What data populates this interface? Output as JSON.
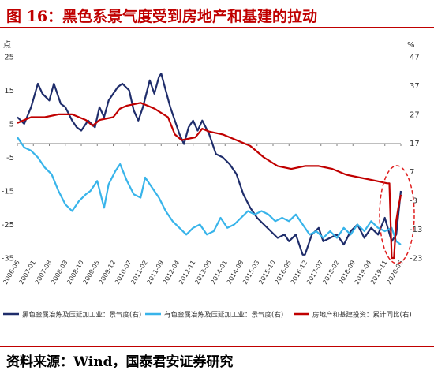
{
  "header": {
    "title": "图 16：黑色系景气度受到房地产和基建的拉动"
  },
  "footer": {
    "source": "资料来源：Wind，国泰君安证券研究"
  },
  "colors": {
    "title": "#c00000",
    "rule": "#c00000",
    "ferrous": "#1f2d6b",
    "nonferrous": "#38b4ea",
    "realestate": "#c00000",
    "highlight": "#e02020"
  },
  "chart_data": {
    "type": "line",
    "left_axis": {
      "unit": "点",
      "ticks": [
        25,
        15,
        5,
        -5,
        -15,
        -25,
        -35
      ],
      "range": [
        -35,
        25
      ]
    },
    "right_axis": {
      "unit": "%",
      "ticks": [
        47,
        37,
        27,
        17,
        7,
        -3,
        -13,
        -23
      ],
      "range": [
        -23,
        47
      ]
    },
    "x_ticks": [
      "2006-06",
      "2007-01",
      "2007-08",
      "2008-03",
      "2008-10",
      "2009-05",
      "2009-12",
      "2010-07",
      "2011-02",
      "2011-09",
      "2012-04",
      "2012-11",
      "2013-06",
      "2014-01",
      "2014-08",
      "2015-03",
      "2015-10",
      "2016-05",
      "2016-12",
      "2017-07",
      "2018-02",
      "2018-09",
      "2019-04",
      "2019-11",
      "2020-06"
    ],
    "series": [
      {
        "name": "黑色金属冶炼及压延加工业：景气度(右)",
        "axis": "left",
        "values": [
          [
            "2006-06",
            7
          ],
          [
            "2006-09",
            5
          ],
          [
            "2006-12",
            10
          ],
          [
            "2007-03",
            17
          ],
          [
            "2007-05",
            14
          ],
          [
            "2007-08",
            12
          ],
          [
            "2007-10",
            17
          ],
          [
            "2008-01",
            11
          ],
          [
            "2008-03",
            10
          ],
          [
            "2008-06",
            6
          ],
          [
            "2008-08",
            4
          ],
          [
            "2008-10",
            3
          ],
          [
            "2009-01",
            6
          ],
          [
            "2009-04",
            4
          ],
          [
            "2009-06",
            10
          ],
          [
            "2009-08",
            7
          ],
          [
            "2009-10",
            12
          ],
          [
            "2009-12",
            14
          ],
          [
            "2010-02",
            16
          ],
          [
            "2010-04",
            17
          ],
          [
            "2010-07",
            15
          ],
          [
            "2010-09",
            9
          ],
          [
            "2010-11",
            6
          ],
          [
            "2011-01",
            10
          ],
          [
            "2011-04",
            18
          ],
          [
            "2011-06",
            14
          ],
          [
            "2011-08",
            19
          ],
          [
            "2011-09",
            20
          ],
          [
            "2011-11",
            15
          ],
          [
            "2012-01",
            10
          ],
          [
            "2012-03",
            6
          ],
          [
            "2012-05",
            2
          ],
          [
            "2012-07",
            -1
          ],
          [
            "2012-09",
            4
          ],
          [
            "2012-11",
            6
          ],
          [
            "2013-01",
            3
          ],
          [
            "2013-03",
            6
          ],
          [
            "2013-06",
            2
          ],
          [
            "2013-09",
            -4
          ],
          [
            "2013-12",
            -5
          ],
          [
            "2014-03",
            -7
          ],
          [
            "2014-06",
            -10
          ],
          [
            "2014-09",
            -16
          ],
          [
            "2014-12",
            -20
          ],
          [
            "2015-03",
            -23
          ],
          [
            "2015-06",
            -25
          ],
          [
            "2015-09",
            -27
          ],
          [
            "2015-12",
            -29
          ],
          [
            "2016-03",
            -28
          ],
          [
            "2016-05",
            -30
          ],
          [
            "2016-08",
            -28
          ],
          [
            "2016-11",
            -34
          ],
          [
            "2016-12",
            -34
          ],
          [
            "2017-03",
            -28
          ],
          [
            "2017-06",
            -26
          ],
          [
            "2017-08",
            -30
          ],
          [
            "2017-11",
            -29
          ],
          [
            "2018-02",
            -28
          ],
          [
            "2018-05",
            -31
          ],
          [
            "2018-08",
            -27
          ],
          [
            "2018-11",
            -25
          ],
          [
            "2019-02",
            -29
          ],
          [
            "2019-05",
            -26
          ],
          [
            "2019-08",
            -28
          ],
          [
            "2019-11",
            -23
          ],
          [
            "2020-02",
            -30
          ],
          [
            "2020-04",
            -28
          ],
          [
            "2020-06",
            -15
          ]
        ]
      },
      {
        "name": "有色金属冶炼及压延加工业：景气度(右)",
        "axis": "left",
        "values": [
          [
            "2006-06",
            1
          ],
          [
            "2006-09",
            -2
          ],
          [
            "2006-12",
            -3
          ],
          [
            "2007-03",
            -5
          ],
          [
            "2007-06",
            -8
          ],
          [
            "2007-09",
            -10
          ],
          [
            "2007-12",
            -15
          ],
          [
            "2008-03",
            -19
          ],
          [
            "2008-06",
            -21
          ],
          [
            "2008-09",
            -18
          ],
          [
            "2008-12",
            -16
          ],
          [
            "2009-02",
            -15
          ],
          [
            "2009-05",
            -12
          ],
          [
            "2009-08",
            -20
          ],
          [
            "2009-10",
            -13
          ],
          [
            "2010-01",
            -9
          ],
          [
            "2010-03",
            -7
          ],
          [
            "2010-06",
            -12
          ],
          [
            "2010-09",
            -16
          ],
          [
            "2010-12",
            -17
          ],
          [
            "2011-02",
            -11
          ],
          [
            "2011-05",
            -14
          ],
          [
            "2011-08",
            -17
          ],
          [
            "2011-11",
            -21
          ],
          [
            "2012-02",
            -24
          ],
          [
            "2012-05",
            -26
          ],
          [
            "2012-08",
            -28
          ],
          [
            "2012-11",
            -26
          ],
          [
            "2013-02",
            -25
          ],
          [
            "2013-05",
            -28
          ],
          [
            "2013-08",
            -27
          ],
          [
            "2013-11",
            -23
          ],
          [
            "2014-02",
            -26
          ],
          [
            "2014-05",
            -25
          ],
          [
            "2014-08",
            -23
          ],
          [
            "2014-11",
            -21
          ],
          [
            "2015-02",
            -22
          ],
          [
            "2015-05",
            -21
          ],
          [
            "2015-08",
            -22
          ],
          [
            "2015-11",
            -24
          ],
          [
            "2016-02",
            -23
          ],
          [
            "2016-05",
            -24
          ],
          [
            "2016-08",
            -22
          ],
          [
            "2016-11",
            -25
          ],
          [
            "2017-02",
            -28
          ],
          [
            "2017-05",
            -27
          ],
          [
            "2017-08",
            -29
          ],
          [
            "2017-11",
            -27
          ],
          [
            "2018-02",
            -29
          ],
          [
            "2018-05",
            -26
          ],
          [
            "2018-08",
            -28
          ],
          [
            "2018-11",
            -25
          ],
          [
            "2019-02",
            -27
          ],
          [
            "2019-05",
            -24
          ],
          [
            "2019-08",
            -26
          ],
          [
            "2019-11",
            -27
          ],
          [
            "2020-02",
            -26
          ],
          [
            "2020-04",
            -30
          ],
          [
            "2020-06",
            -31
          ]
        ]
      },
      {
        "name": "房地产和基建投资：累计同比(右)",
        "axis": "right",
        "values": [
          [
            "2006-06",
            24
          ],
          [
            "2006-12",
            26
          ],
          [
            "2007-06",
            26
          ],
          [
            "2007-12",
            27
          ],
          [
            "2008-06",
            27
          ],
          [
            "2008-12",
            25
          ],
          [
            "2009-03",
            23
          ],
          [
            "2009-06",
            25
          ],
          [
            "2009-12",
            26
          ],
          [
            "2010-03",
            29
          ],
          [
            "2010-06",
            30
          ],
          [
            "2010-12",
            31
          ],
          [
            "2011-03",
            30
          ],
          [
            "2011-06",
            29
          ],
          [
            "2011-12",
            26
          ],
          [
            "2012-03",
            20
          ],
          [
            "2012-06",
            18
          ],
          [
            "2012-12",
            19
          ],
          [
            "2013-03",
            22
          ],
          [
            "2013-06",
            21
          ],
          [
            "2013-12",
            20
          ],
          [
            "2014-06",
            18
          ],
          [
            "2014-12",
            16
          ],
          [
            "2015-06",
            12
          ],
          [
            "2015-12",
            9
          ],
          [
            "2016-06",
            8
          ],
          [
            "2016-12",
            9
          ],
          [
            "2017-06",
            9
          ],
          [
            "2017-12",
            8
          ],
          [
            "2018-06",
            6
          ],
          [
            "2018-12",
            5
          ],
          [
            "2019-06",
            4
          ],
          [
            "2019-12",
            3
          ],
          [
            "2020-01",
            3
          ],
          [
            "2020-02",
            -23
          ],
          [
            "2020-03",
            -23
          ],
          [
            "2020-04",
            -10
          ],
          [
            "2020-05",
            -5
          ],
          [
            "2020-06",
            -1
          ]
        ]
      }
    ]
  }
}
